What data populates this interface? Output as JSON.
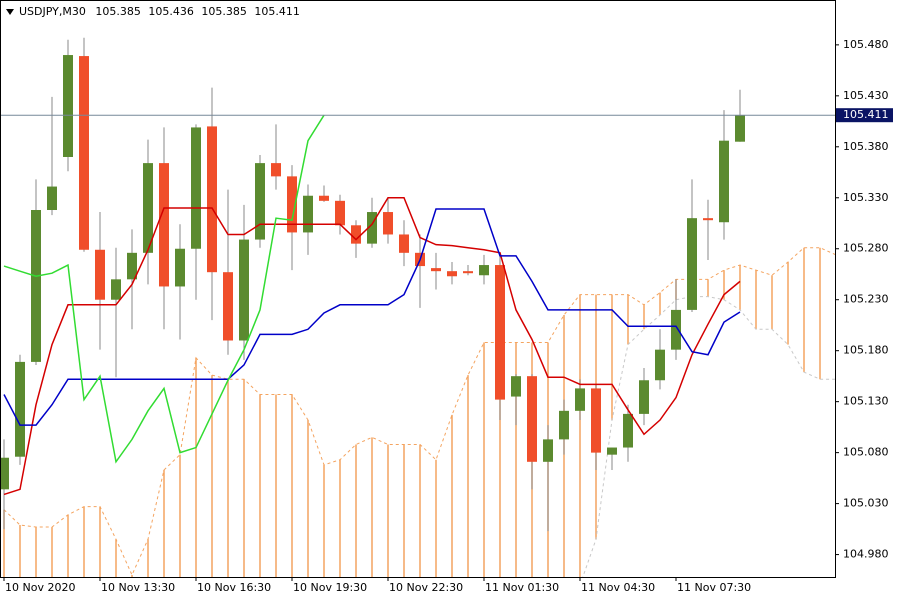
{
  "chart_data": {
    "type": "candlestick",
    "title": "USDJPY,M30",
    "categories": [
      "10 Nov 2020",
      null,
      null,
      null,
      null,
      null,
      "10 Nov 13:30",
      null,
      null,
      null,
      null,
      null,
      "10 Nov 16:30",
      null,
      null,
      null,
      null,
      null,
      "10 Nov 19:30",
      null,
      null,
      null,
      null,
      null,
      "10 Nov 22:30",
      null,
      null,
      null,
      null,
      null,
      "11 Nov 01:30",
      null,
      null,
      null,
      null,
      null,
      "11 Nov 04:30",
      null,
      null,
      null,
      null,
      null,
      "11 Nov 07:30",
      null,
      null,
      null,
      null,
      null,
      null,
      null,
      null,
      null,
      null
    ],
    "open": [
      105.044,
      105.076,
      105.169,
      105.318,
      105.37,
      105.469,
      105.279,
      105.23,
      105.25,
      105.276,
      105.364,
      105.243,
      105.28,
      105.4,
      105.257,
      105.19,
      105.289,
      105.364,
      105.351,
      105.296,
      105.332,
      105.327,
      105.303,
      105.285,
      105.316,
      105.294,
      105.276,
      105.261,
      105.258,
      105.258,
      105.254,
      105.264,
      105.135,
      105.155,
      105.071,
      105.093,
      105.121,
      105.143,
      105.078,
      105.085,
      105.118,
      105.151,
      105.181,
      105.22,
      105.31,
      105.306,
      105.385,
      null,
      null,
      null,
      null,
      null,
      null
    ],
    "high": [
      105.093,
      105.176,
      105.348,
      105.429,
      105.485,
      105.487,
      105.316,
      105.281,
      105.299,
      105.387,
      105.399,
      105.304,
      105.402,
      105.438,
      105.338,
      105.323,
      105.372,
      105.402,
      105.362,
      105.343,
      105.342,
      105.333,
      105.308,
      105.33,
      105.33,
      105.308,
      105.294,
      105.276,
      105.267,
      105.264,
      105.274,
      105.274,
      105.157,
      105.157,
      105.107,
      105.132,
      105.152,
      105.147,
      105.085,
      105.127,
      105.163,
      105.201,
      105.25,
      105.348,
      105.328,
      105.416,
      105.436,
      null,
      null,
      null,
      null,
      null,
      null
    ],
    "low": [
      105.005,
      105.068,
      105.166,
      105.313,
      105.356,
      105.277,
      105.181,
      105.154,
      105.201,
      105.245,
      105.201,
      105.191,
      105.23,
      105.21,
      105.176,
      105.171,
      105.281,
      105.338,
      105.259,
      105.274,
      105.326,
      105.294,
      105.271,
      105.281,
      105.285,
      105.263,
      105.222,
      105.24,
      105.245,
      105.254,
      105.245,
      105.112,
      105.107,
      105.044,
      105.003,
      105.078,
      105.112,
      105.063,
      105.063,
      105.071,
      105.107,
      105.142,
      105.171,
      105.218,
      105.269,
      105.289,
      105.385,
      null,
      null,
      null,
      null,
      null,
      null
    ],
    "close": [
      105.075,
      105.169,
      105.318,
      105.341,
      105.47,
      105.279,
      105.23,
      105.25,
      105.276,
      105.364,
      105.243,
      105.28,
      105.399,
      105.257,
      105.19,
      105.289,
      105.364,
      105.351,
      105.296,
      105.332,
      105.327,
      105.303,
      105.285,
      105.316,
      105.294,
      105.276,
      105.263,
      105.258,
      105.253,
      105.256,
      105.264,
      105.132,
      105.155,
      105.071,
      105.093,
      105.121,
      105.143,
      105.08,
      105.085,
      105.118,
      105.151,
      105.181,
      105.22,
      105.31,
      105.308,
      105.386,
      105.411,
      null,
      null,
      null,
      null,
      null,
      null
    ],
    "up_color": "#5b8a2f",
    "down_color": "#f04e2a",
    "lines": [
      {
        "color": "#d40000",
        "values": [
          105.039,
          105.044,
          105.127,
          105.186,
          105.225,
          105.225,
          105.225,
          105.225,
          105.245,
          105.279,
          105.32,
          105.32,
          105.32,
          105.32,
          105.294,
          105.294,
          105.304,
          105.304,
          105.304,
          105.304,
          105.304,
          105.304,
          105.289,
          105.304,
          105.33,
          105.33,
          105.291,
          105.284,
          105.283,
          105.281,
          105.279,
          105.276,
          105.22,
          105.191,
          105.154,
          105.154,
          105.147,
          105.147,
          105.147,
          105.122,
          105.098,
          105.112,
          105.134,
          105.176,
          105.206,
          105.235,
          105.248,
          null,
          null,
          null,
          null,
          null,
          null
        ]
      },
      {
        "color": "#0000c8",
        "values": [
          105.137,
          105.107,
          105.107,
          105.127,
          105.152,
          105.152,
          105.152,
          105.152,
          105.152,
          105.152,
          105.152,
          105.152,
          105.152,
          105.152,
          105.152,
          105.166,
          105.196,
          105.196,
          105.196,
          105.201,
          105.217,
          105.225,
          105.225,
          105.225,
          105.225,
          105.235,
          105.269,
          105.319,
          105.319,
          105.319,
          105.319,
          105.273,
          105.273,
          105.248,
          105.22,
          105.22,
          105.22,
          105.22,
          105.22,
          105.204,
          105.204,
          105.204,
          105.204,
          105.179,
          105.176,
          105.208,
          105.218,
          null,
          null,
          null,
          null,
          null,
          null
        ]
      },
      {
        "color": "#32dc32",
        "values": [
          105.263,
          105.258,
          105.253,
          105.256,
          105.264,
          105.132,
          105.155,
          105.071,
          105.093,
          105.121,
          105.143,
          105.08,
          105.085,
          105.118,
          105.151,
          105.181,
          105.22,
          105.31,
          105.308,
          105.386,
          105.411,
          null,
          null,
          null,
          null,
          null,
          null,
          null,
          null,
          null,
          null,
          null,
          null,
          null,
          null,
          null,
          null,
          null,
          null,
          null,
          null,
          null,
          null,
          null,
          null,
          null,
          null,
          null,
          null,
          null,
          null,
          null,
          null
        ]
      }
    ],
    "cloud": {
      "color": "#f4a460",
      "line_colors": [
        "#f4a460",
        "#c8c8c8"
      ],
      "span_a": [
        105.024,
        105.009,
        105.007,
        105.007,
        105.019,
        105.027,
        105.027,
        104.995,
        104.96,
        104.995,
        105.063,
        105.078,
        105.173,
        105.156,
        105.152,
        105.152,
        105.137,
        105.137,
        105.137,
        105.112,
        105.068,
        105.073,
        105.088,
        105.095,
        105.088,
        105.088,
        105.088,
        105.073,
        105.117,
        105.156,
        105.188,
        105.188,
        105.188,
        105.188,
        105.188,
        105.215,
        105.235,
        105.235,
        105.235,
        105.235,
        105.225,
        105.237,
        105.25,
        105.25,
        105.25,
        105.259,
        105.264,
        105.259,
        105.254,
        105.267,
        105.281,
        105.281,
        105.274
      ],
      "span_b": [
        104.95,
        104.95,
        104.95,
        104.95,
        104.95,
        104.95,
        104.95,
        104.95,
        104.95,
        104.95,
        104.95,
        104.95,
        104.95,
        104.95,
        104.95,
        104.95,
        104.95,
        104.95,
        104.95,
        104.95,
        104.95,
        104.95,
        104.95,
        104.95,
        104.95,
        104.95,
        104.95,
        104.95,
        104.95,
        104.95,
        104.95,
        104.95,
        104.95,
        104.95,
        104.95,
        104.95,
        104.95,
        104.995,
        105.112,
        105.186,
        105.201,
        105.215,
        105.23,
        105.233,
        105.233,
        105.23,
        105.22,
        105.201,
        105.201,
        105.186,
        105.159,
        105.152,
        105.152
      ]
    },
    "price_line_color": "#778899",
    "price_label_color": "#0a1464",
    "ylim": [
      104.958,
      105.524
    ],
    "yticks": [
      {
        "value": 104.98,
        "label": "104.980"
      },
      {
        "value": 105.03,
        "label": "105.030"
      },
      {
        "value": 105.08,
        "label": "105.080"
      },
      {
        "value": 105.13,
        "label": "105.130"
      },
      {
        "value": 105.18,
        "label": "105.180"
      },
      {
        "value": 105.23,
        "label": "105.230"
      },
      {
        "value": 105.28,
        "label": "105.280"
      },
      {
        "value": 105.33,
        "label": "105.330"
      },
      {
        "value": 105.38,
        "label": "105.380"
      },
      {
        "value": 105.43,
        "label": "105.430"
      },
      {
        "value": 105.48,
        "label": "105.480"
      }
    ],
    "grid": false
  }
}
